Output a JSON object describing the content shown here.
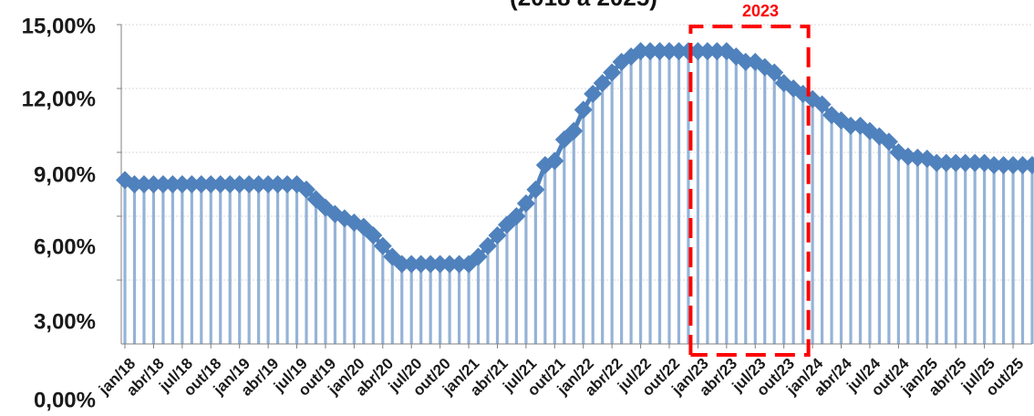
{
  "chart_data": {
    "type": "bar-line",
    "title": "(2018 a 2025)",
    "y_ticks": [
      "15,00%",
      "12,00%",
      "9,00%",
      "6,00%",
      "3,00%",
      "0,00%"
    ],
    "ylim": [
      0,
      15
    ],
    "x_tick_labels": [
      "jan/18",
      "abr/18",
      "jul/18",
      "out/18",
      "jan/19",
      "abr/19",
      "jul/19",
      "out/19",
      "jan/20",
      "abr/20",
      "jul/20",
      "out/20",
      "jan/21",
      "abr/21",
      "jul/21",
      "out/21",
      "jan/22",
      "abr/22",
      "jul/22",
      "out/22",
      "jan/23",
      "abr/23",
      "jul/23",
      "out/23",
      "jan/24",
      "abr/24",
      "jul/24",
      "out/24",
      "jan/25",
      "abr/25",
      "jul/25",
      "out/25"
    ],
    "months_start": "jan/18",
    "values": [
      7.7,
      7.5,
      7.5,
      7.5,
      7.5,
      7.5,
      7.5,
      7.5,
      7.5,
      7.5,
      7.5,
      7.5,
      7.5,
      7.5,
      7.5,
      7.5,
      7.5,
      7.5,
      7.5,
      7.25,
      6.8,
      6.4,
      6.1,
      5.9,
      5.7,
      5.5,
      5.1,
      4.6,
      4.1,
      3.75,
      3.75,
      3.75,
      3.75,
      3.75,
      3.75,
      3.75,
      3.75,
      4.1,
      4.6,
      5.1,
      5.6,
      6.0,
      6.6,
      7.25,
      8.4,
      8.6,
      9.6,
      10.0,
      11.0,
      11.75,
      12.25,
      12.75,
      13.25,
      13.5,
      13.75,
      13.75,
      13.75,
      13.75,
      13.75,
      13.75,
      13.75,
      13.75,
      13.75,
      13.75,
      13.5,
      13.25,
      13.25,
      13.0,
      12.75,
      12.25,
      12.0,
      11.75,
      11.5,
      11.25,
      10.75,
      10.5,
      10.25,
      10.25,
      10.0,
      9.75,
      9.5,
      9.0,
      8.8,
      8.75,
      8.7,
      8.5,
      8.5,
      8.5,
      8.5,
      8.5,
      8.5,
      8.4,
      8.4,
      8.4,
      8.4,
      8.4
    ],
    "annotation": {
      "label": "2023",
      "from_index": 60,
      "to_index": 71,
      "color": "#ff0000"
    },
    "bar_color": "#95b3d7",
    "line_color": "#4f81bd",
    "grid": true
  }
}
